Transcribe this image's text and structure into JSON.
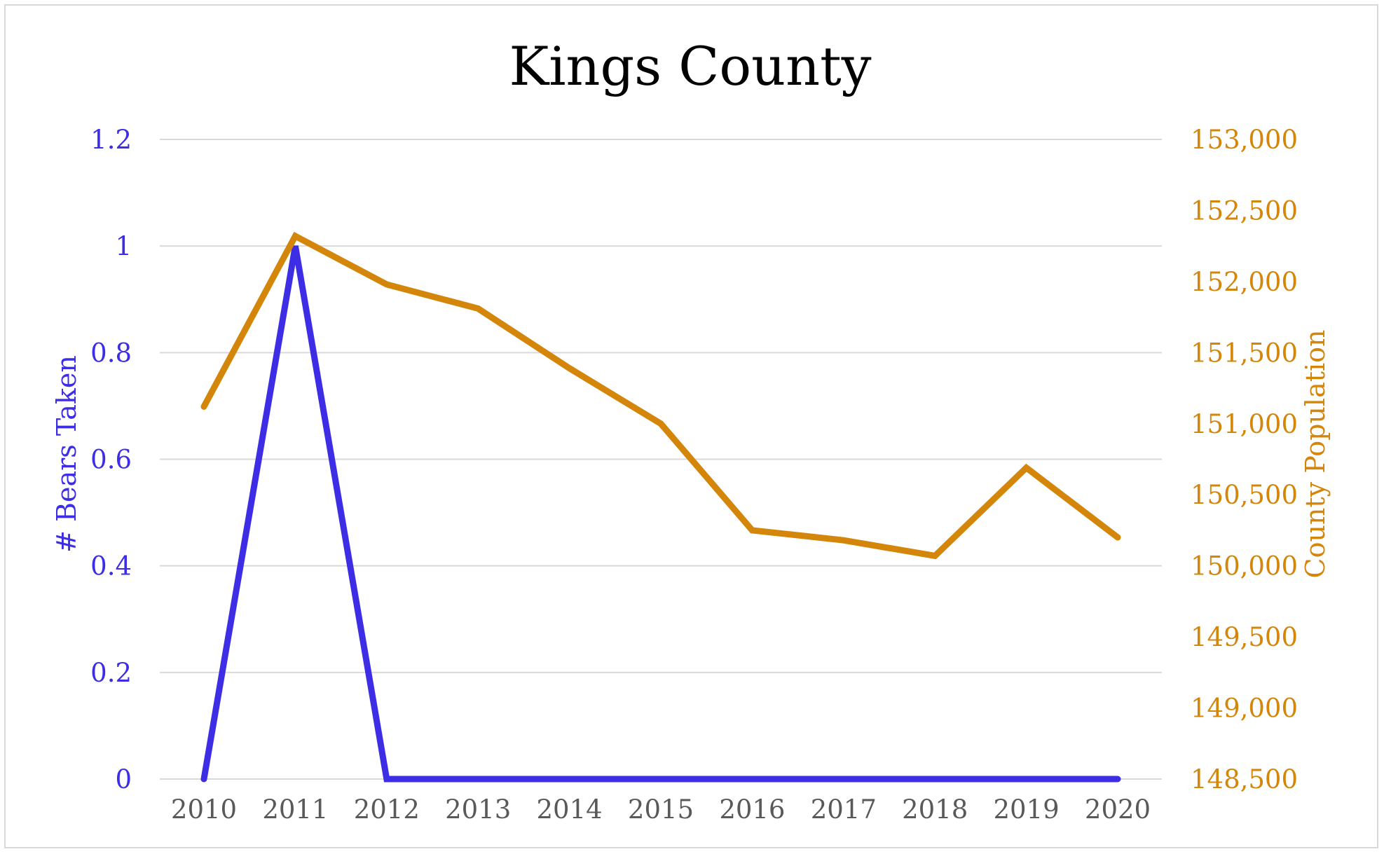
{
  "chart_data": {
    "type": "line",
    "title": "Kings County",
    "xlabel": "",
    "categories": [
      "2010",
      "2011",
      "2012",
      "2013",
      "2014",
      "2015",
      "2016",
      "2017",
      "2018",
      "2019",
      "2020"
    ],
    "y_left": {
      "label": "# Bears Taken",
      "range": [
        0,
        1.2
      ],
      "ticks": [
        0,
        0.2,
        0.4,
        0.6,
        0.8,
        1,
        1.2
      ],
      "tick_labels": [
        "0",
        "0.2",
        "0.4",
        "0.6",
        "0.8",
        "1",
        "1.2"
      ],
      "color": "#3d2ee6"
    },
    "y_right": {
      "label": "County Population",
      "range": [
        148500,
        153000
      ],
      "ticks": [
        148500,
        149000,
        149500,
        150000,
        150500,
        151000,
        151500,
        152000,
        152500,
        153000
      ],
      "tick_labels": [
        "148,500",
        "149,000",
        "149,500",
        "150,000",
        "150,500",
        "151,000",
        "151,500",
        "152,000",
        "152,500",
        "153,000"
      ],
      "color": "#d4860b"
    },
    "series": [
      {
        "axis": "left",
        "color": "#3d2ee6",
        "values": [
          0,
          1,
          0,
          0,
          0,
          0,
          0,
          0,
          0,
          0,
          0
        ]
      },
      {
        "axis": "right",
        "color": "#d4860b",
        "values": [
          151120,
          152320,
          151980,
          151810,
          151390,
          151000,
          150250,
          150180,
          150070,
          150690,
          150200
        ]
      }
    ],
    "grid": true,
    "legend": "none"
  }
}
